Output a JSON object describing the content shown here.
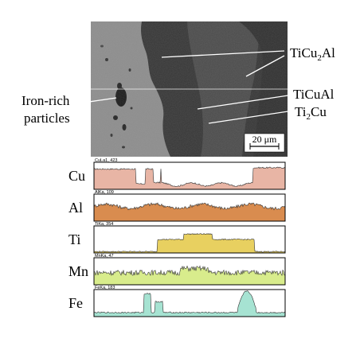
{
  "figure": {
    "micrograph": {
      "phase_labels": [
        {
          "id": "ticu2al",
          "prefix": "TiCu",
          "sub": "2",
          "suffix": "Al"
        },
        {
          "id": "ticual",
          "prefix": "TiCuAl",
          "sub": "",
          "suffix": ""
        },
        {
          "id": "ti2cu",
          "prefix": "Ti",
          "sub": "2",
          "suffix": "Cu"
        }
      ],
      "iron_rich_label_line1": "Iron-rich",
      "iron_rich_label_line2": "particles",
      "scale_bar": "20 μm"
    },
    "linescans": [
      {
        "element": "Cu",
        "caption": "CuLa1, 423",
        "fill": "#e8b5a5"
      },
      {
        "element": "Al",
        "caption": "AlKa, 109",
        "fill": "#d98c4f"
      },
      {
        "element": "Ti",
        "caption": "TiKa, 354",
        "fill": "#e8d060"
      },
      {
        "element": "Mn",
        "caption": "MnKa, 47",
        "fill": "#d8ec8c"
      },
      {
        "element": "Fe",
        "caption": "FeKa, 183",
        "fill": "#a6e3d2"
      }
    ]
  }
}
